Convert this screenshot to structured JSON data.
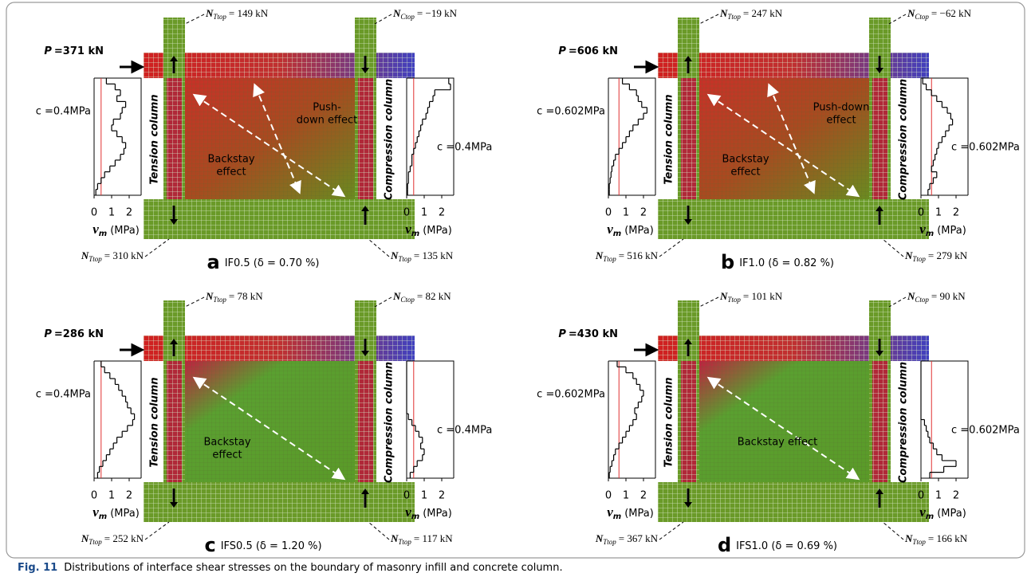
{
  "figure": {
    "column_labels": {
      "tension": "Tension column",
      "compression": "Compression column"
    },
    "axis_label": {
      "symbol": "v",
      "sub": "m",
      "unit": "(MPa)"
    },
    "xlim": [
      0,
      2.5
    ],
    "xticks": [
      0,
      1,
      2
    ],
    "panels": [
      {
        "letter": "a",
        "caption": "IF0.5 (δ = 0.70 %)",
        "load": {
          "symbol": "P",
          "text": "=371 kN"
        },
        "n_top_left": {
          "symbol": "N",
          "sub": "Ttop",
          "text": "= 149 kN"
        },
        "n_top_right": {
          "symbol": "N",
          "sub": "Ctop",
          "text": "= −19 kN"
        },
        "n_bottom_left": {
          "symbol": "N",
          "sub": "Ttop",
          "text": "= 310 kN"
        },
        "n_bottom_right": {
          "symbol": "N",
          "sub": "Ttop",
          "text": "= 135 kN"
        },
        "effects": [
          [
            "Backstay",
            "effect"
          ],
          [
            "Push-",
            "down effect"
          ]
        ],
        "c": {
          "value": 0.4,
          "label": "c =0.4MPa"
        },
        "left_profile": [
          0.7,
          1.2,
          1.5,
          1.3,
          1.8,
          1.6,
          1.5,
          1.1,
          1.0,
          1.3,
          1.6,
          1.8,
          1.7,
          1.5,
          1.2,
          0.9,
          0.6,
          0.4,
          0.2,
          0.1
        ],
        "right_profile": [
          2.4,
          2.5,
          1.6,
          1.5,
          1.3,
          1.2,
          1.1,
          0.9,
          0.8,
          0.7,
          0.6,
          0.5,
          0.4,
          0.3,
          0.3,
          0.2,
          0.1,
          0.1,
          0.05,
          0.05
        ]
      },
      {
        "letter": "b",
        "caption": "IF1.0 (δ = 0.82 %)",
        "load": {
          "symbol": "P",
          "text": "=606 kN"
        },
        "n_top_left": {
          "symbol": "N",
          "sub": "Ttop",
          "text": "= 247 kN"
        },
        "n_top_right": {
          "symbol": "N",
          "sub": "Ctop",
          "text": "= −62 kN"
        },
        "n_bottom_left": {
          "symbol": "N",
          "sub": "Ttop",
          "text": "= 516 kN"
        },
        "n_bottom_right": {
          "symbol": "N",
          "sub": "Ttop",
          "text": "= 279 kN"
        },
        "effects": [
          [
            "Backstay",
            "effect"
          ],
          [
            "Push-down",
            "effect"
          ]
        ],
        "c": {
          "value": 0.602,
          "label": "c =0.602MPa"
        },
        "left_profile": [
          0.8,
          1.2,
          1.6,
          1.7,
          1.9,
          2.2,
          2.0,
          1.7,
          1.4,
          1.2,
          1.0,
          0.8,
          0.6,
          0.4,
          0.3,
          0.2,
          0.15,
          0.1,
          0.05,
          0.05
        ],
        "right_profile": [
          0.1,
          0.3,
          0.6,
          0.9,
          1.2,
          1.5,
          1.7,
          1.8,
          1.6,
          1.4,
          1.2,
          1.0,
          0.9,
          0.8,
          0.7,
          0.6,
          0.9,
          0.7,
          0.5,
          0.4
        ]
      },
      {
        "letter": "c",
        "caption": "IFS0.5 (δ = 1.20 %)",
        "load": {
          "symbol": "P",
          "text": "=286 kN"
        },
        "n_top_left": {
          "symbol": "N",
          "sub": "Ttop",
          "text": "= 78 kN"
        },
        "n_top_right": {
          "symbol": "N",
          "sub": "Ctop",
          "text": "= 82 kN"
        },
        "n_bottom_left": {
          "symbol": "N",
          "sub": "Ttop",
          "text": "= 252 kN"
        },
        "n_bottom_right": {
          "symbol": "N",
          "sub": "Ttop",
          "text": "= 117 kN"
        },
        "effects": [
          [
            "Backstay",
            "effect"
          ]
        ],
        "c": {
          "value": 0.4,
          "label": "c =0.4MPa"
        },
        "left_profile": [
          0.4,
          0.6,
          0.9,
          1.2,
          1.4,
          1.6,
          1.8,
          1.9,
          2.1,
          2.3,
          2.2,
          1.9,
          1.6,
          1.3,
          1.1,
          0.9,
          0.7,
          0.5,
          0.3,
          0.2
        ],
        "right_profile": [
          0,
          0,
          0,
          0,
          0,
          0,
          0,
          0,
          0,
          0.1,
          0.3,
          0.5,
          0.7,
          0.9,
          0.8,
          1.0,
          0.9,
          0.6,
          0.4,
          0.2
        ]
      },
      {
        "letter": "d",
        "caption": "IFS1.0 (δ = 0.69 %)",
        "load": {
          "symbol": "P",
          "text": "=430 kN"
        },
        "n_top_left": {
          "symbol": "N",
          "sub": "Ttop",
          "text": "= 101 kN"
        },
        "n_top_right": {
          "symbol": "N",
          "sub": "Ctop",
          "text": "= 90 kN"
        },
        "n_bottom_left": {
          "symbol": "N",
          "sub": "Ttop",
          "text": "= 367 kN"
        },
        "n_bottom_right": {
          "symbol": "N",
          "sub": "Ttop",
          "text": "= 166 kN"
        },
        "effects": [
          [
            "Backstay effect"
          ]
        ],
        "c": {
          "value": 0.602,
          "label": "c =0.602MPa"
        },
        "left_profile": [
          0.5,
          1.0,
          1.4,
          1.6,
          1.8,
          2.0,
          1.9,
          1.7,
          1.5,
          1.6,
          1.4,
          1.2,
          1.0,
          0.8,
          0.6,
          0.4,
          0.3,
          0.2,
          0.1,
          0.05
        ],
        "right_profile": [
          0,
          0,
          0,
          0,
          0,
          0,
          0,
          0,
          0,
          0,
          0.2,
          0.3,
          0.4,
          0.5,
          0.7,
          0.9,
          1.2,
          2.0,
          1.3,
          0.5
        ]
      }
    ]
  },
  "caption": {
    "label": "Fig. 11",
    "text": "Distributions of interface shear stresses on the boundary of masonry infill and concrete column."
  }
}
